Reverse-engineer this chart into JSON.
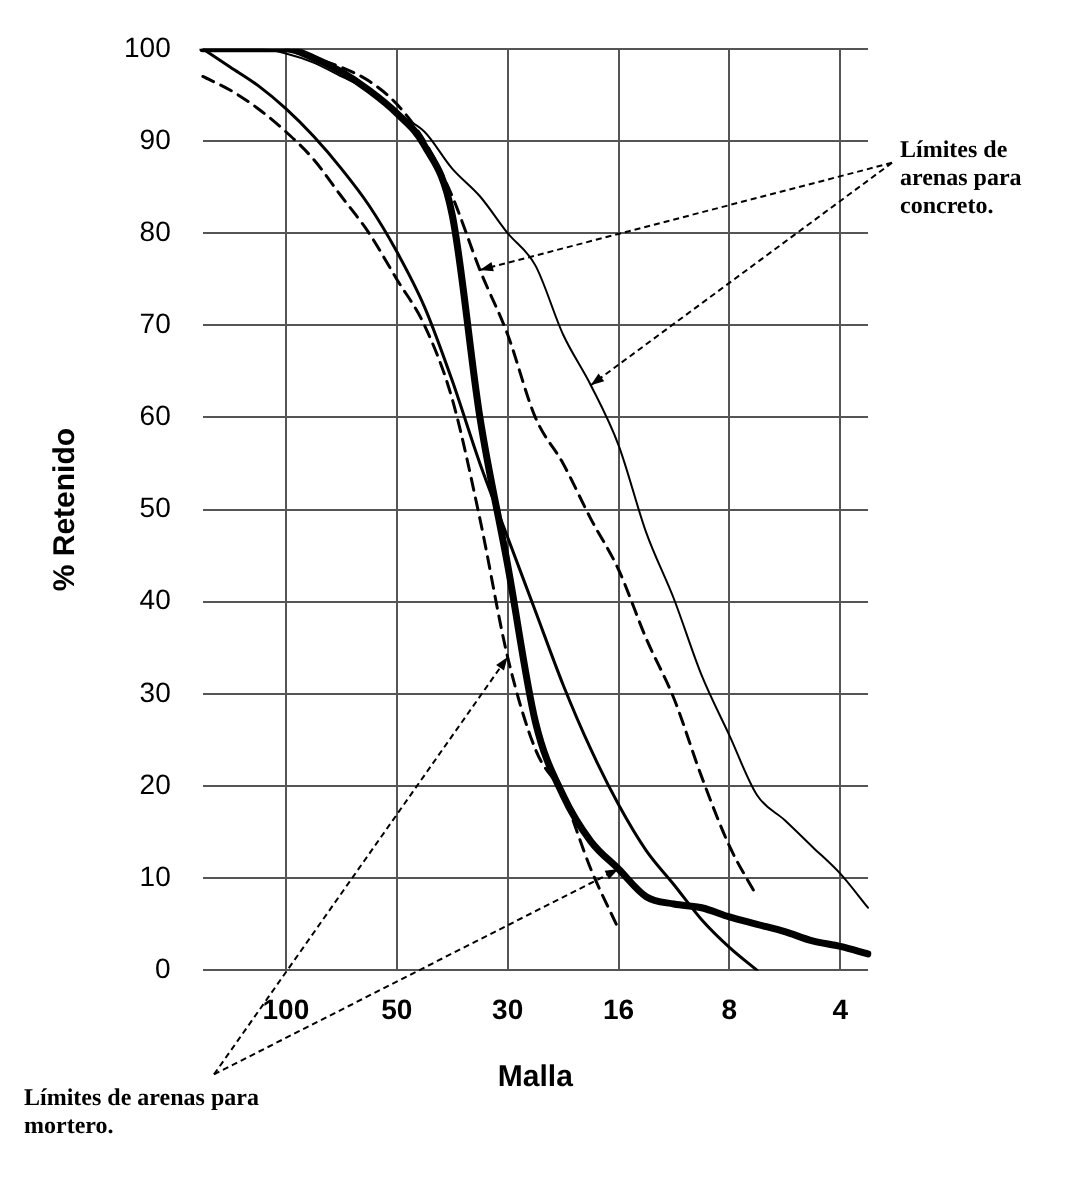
{
  "chart_data": {
    "type": "line",
    "xlabel": "Malla",
    "ylabel": "% Retenido",
    "categories": [
      null,
      null,
      null,
      "100",
      null,
      null,
      null,
      "50",
      null,
      null,
      null,
      "30",
      null,
      null,
      null,
      "16",
      null,
      null,
      null,
      "8",
      null,
      null,
      null,
      "4",
      null
    ],
    "ylim": [
      0,
      100
    ],
    "yticks": [
      0,
      10,
      20,
      30,
      40,
      50,
      60,
      70,
      80,
      90,
      100
    ],
    "grid": true,
    "legend": false,
    "marker": "none",
    "series": [
      {
        "color": "#000000",
        "line_style": "solid",
        "values": [
          100,
          100,
          100,
          100,
          99,
          97.5,
          95.5,
          93,
          89.5,
          82,
          60,
          44,
          27,
          19,
          14,
          11,
          8,
          7.2,
          6.8,
          5.8,
          5,
          4.2,
          3.2,
          2.6,
          1.8
        ]
      },
      {
        "color": "#000000",
        "line_style": "solid",
        "values": [
          100,
          98,
          96,
          93.5,
          90.5,
          87,
          83,
          78,
          72,
          64,
          55,
          47,
          39,
          31,
          24,
          18,
          13,
          9.3,
          5.5,
          2.5,
          0,
          null,
          null,
          null,
          null
        ]
      },
      {
        "color": "#000000",
        "line_style": "dashed",
        "values": [
          97,
          95.5,
          93.5,
          91,
          88,
          84,
          80,
          75,
          70,
          62,
          49,
          34,
          24,
          19,
          11,
          4.5,
          null,
          null,
          null,
          null,
          null,
          null,
          null,
          null,
          null
        ]
      },
      {
        "color": "#000000",
        "line_style": "dashed",
        "values": [
          null,
          null,
          null,
          100,
          99,
          98,
          96.5,
          94,
          90,
          84,
          76,
          69,
          60,
          55,
          49,
          43.5,
          36,
          29.5,
          21,
          13.5,
          8,
          null,
          null,
          null,
          null
        ]
      },
      {
        "color": "#000000",
        "line_style": "solid",
        "values": [
          100,
          100,
          100,
          99.5,
          98.5,
          97,
          95.5,
          93,
          91,
          87,
          84,
          80,
          76.5,
          69,
          63.5,
          57,
          47.5,
          40.3,
          32,
          25.5,
          19,
          16.3,
          13.4,
          10.5,
          6.8
        ]
      }
    ],
    "annotations": [
      "Límites de arenas para concreto.",
      "Límites de arenas para mortero."
    ]
  }
}
